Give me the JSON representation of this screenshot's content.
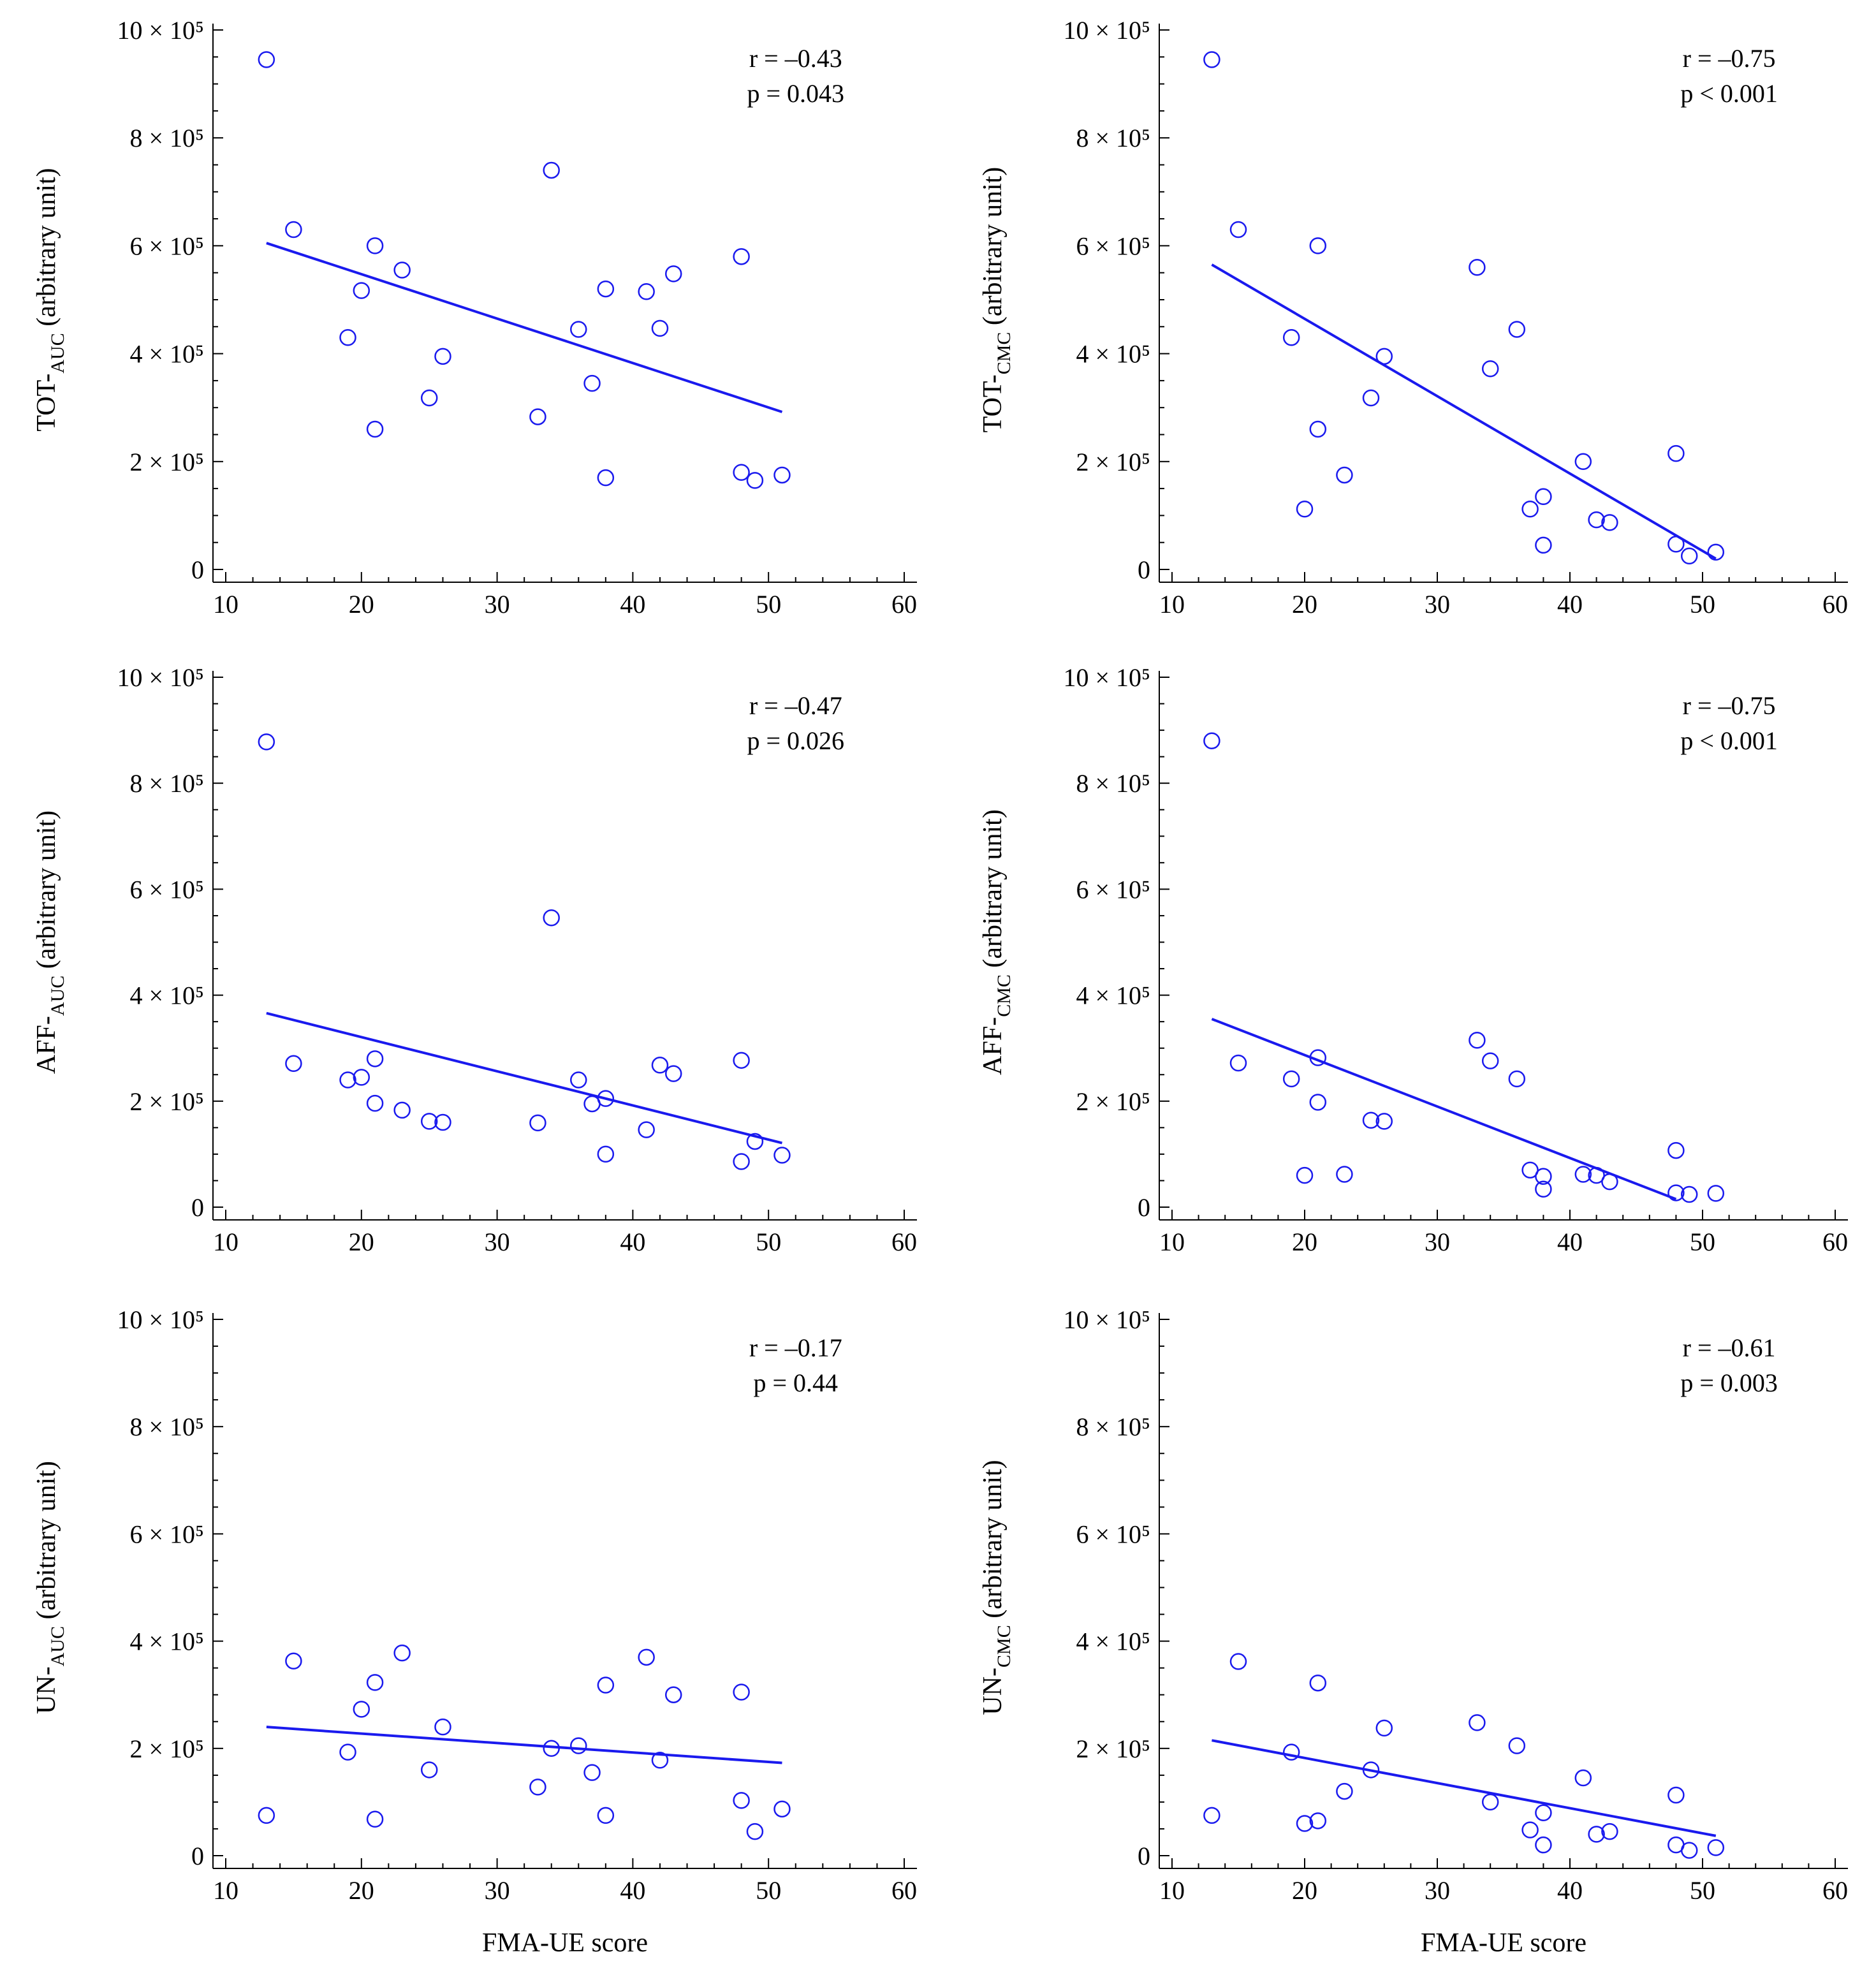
{
  "figure": {
    "x_axis_label": "FMA-UE score",
    "point_color": "#1a1aee",
    "line_color": "#1a1aee"
  },
  "chart_data": [
    {
      "type": "scatter",
      "id": "tot-auc",
      "ylabel_main": "TOT-",
      "ylabel_sub": "AUC",
      "ylabel_rest": " (arbitrary unit)",
      "xlabel": "",
      "xlim": [
        10,
        60
      ],
      "ylim": [
        0,
        1000000
      ],
      "xticks": [
        "10",
        "20",
        "30",
        "40",
        "50",
        "60"
      ],
      "yticks": [
        {
          "label": "0",
          "value": 0
        },
        {
          "label": "2 × 10⁵",
          "value": 200000
        },
        {
          "label": "4 × 10⁵",
          "value": 400000
        },
        {
          "label": "6 × 10⁵",
          "value": 600000
        },
        {
          "label": "8 × 10⁵",
          "value": 800000
        },
        {
          "label": "10 × 10⁵",
          "value": 1000000
        }
      ],
      "stats_r": "r =  –0.43",
      "stats_p": "p = 0.043",
      "fit": {
        "x": [
          13,
          51
        ],
        "y": [
          605000,
          292000
        ]
      },
      "points": [
        [
          13,
          945000
        ],
        [
          15,
          630000
        ],
        [
          19,
          430000
        ],
        [
          20,
          517000
        ],
        [
          21,
          600000
        ],
        [
          21,
          260000
        ],
        [
          23,
          555000
        ],
        [
          25,
          318000
        ],
        [
          26,
          395000
        ],
        [
          33,
          283000
        ],
        [
          34,
          740000
        ],
        [
          36,
          445000
        ],
        [
          37,
          345000
        ],
        [
          38,
          520000
        ],
        [
          38,
          170000
        ],
        [
          41,
          515000
        ],
        [
          42,
          447000
        ],
        [
          43,
          548000
        ],
        [
          48,
          580000
        ],
        [
          48,
          180000
        ],
        [
          49,
          165000
        ],
        [
          51,
          175000
        ]
      ]
    },
    {
      "type": "scatter",
      "id": "tot-cmc",
      "ylabel_main": "TOT-",
      "ylabel_sub": "CMC",
      "ylabel_rest": " (arbitrary unit)",
      "xlabel": "",
      "xlim": [
        10,
        60
      ],
      "ylim": [
        0,
        1000000
      ],
      "xticks": [
        "10",
        "20",
        "30",
        "40",
        "50",
        "60"
      ],
      "yticks": [
        {
          "label": "0",
          "value": 0
        },
        {
          "label": "2 × 10⁵",
          "value": 200000
        },
        {
          "label": "4 × 10⁵",
          "value": 400000
        },
        {
          "label": "6 × 10⁵",
          "value": 600000
        },
        {
          "label": "8 × 10⁵",
          "value": 800000
        },
        {
          "label": "10 × 10⁵",
          "value": 1000000
        }
      ],
      "stats_r": "r =  –0.75",
      "stats_p": "p < 0.001",
      "fit": {
        "x": [
          13,
          51
        ],
        "y": [
          565000,
          20000
        ]
      },
      "points": [
        [
          13,
          945000
        ],
        [
          15,
          630000
        ],
        [
          19,
          430000
        ],
        [
          20,
          112000
        ],
        [
          21,
          600000
        ],
        [
          21,
          260000
        ],
        [
          23,
          175000
        ],
        [
          25,
          318000
        ],
        [
          26,
          395000
        ],
        [
          33,
          560000
        ],
        [
          34,
          372000
        ],
        [
          36,
          445000
        ],
        [
          37,
          112000
        ],
        [
          38,
          135000
        ],
        [
          38,
          45000
        ],
        [
          41,
          200000
        ],
        [
          42,
          92000
        ],
        [
          43,
          87000
        ],
        [
          48,
          215000
        ],
        [
          48,
          47000
        ],
        [
          49,
          25000
        ],
        [
          51,
          32000
        ]
      ]
    },
    {
      "type": "scatter",
      "id": "aff-auc",
      "ylabel_main": "AFF-",
      "ylabel_sub": "AUC",
      "ylabel_rest": " (arbitrary unit)",
      "xlabel": "",
      "xlim": [
        10,
        60
      ],
      "ylim": [
        0,
        1000000
      ],
      "xticks": [
        "10",
        "20",
        "30",
        "40",
        "50",
        "60"
      ],
      "yticks": [
        {
          "label": "0",
          "value": 0
        },
        {
          "label": "2 × 10⁵",
          "value": 200000
        },
        {
          "label": "4 × 10⁵",
          "value": 400000
        },
        {
          "label": "6 × 10⁵",
          "value": 600000
        },
        {
          "label": "8 × 10⁵",
          "value": 800000
        },
        {
          "label": "10 × 10⁵",
          "value": 1000000
        }
      ],
      "stats_r": "r =  –0.47",
      "stats_p": "p = 0.026",
      "fit": {
        "x": [
          13,
          51
        ],
        "y": [
          366000,
          121000
        ]
      },
      "points": [
        [
          13,
          878000
        ],
        [
          15,
          271000
        ],
        [
          19,
          240000
        ],
        [
          20,
          245000
        ],
        [
          21,
          280000
        ],
        [
          21,
          196000
        ],
        [
          23,
          183000
        ],
        [
          25,
          162000
        ],
        [
          26,
          160000
        ],
        [
          33,
          159000
        ],
        [
          34,
          546000
        ],
        [
          36,
          240000
        ],
        [
          37,
          195000
        ],
        [
          38,
          205000
        ],
        [
          38,
          100000
        ],
        [
          41,
          146000
        ],
        [
          42,
          268000
        ],
        [
          43,
          252000
        ],
        [
          48,
          277000
        ],
        [
          48,
          86000
        ],
        [
          49,
          124000
        ],
        [
          51,
          98000
        ]
      ]
    },
    {
      "type": "scatter",
      "id": "aff-cmc",
      "ylabel_main": "AFF-",
      "ylabel_sub": "CMC",
      "ylabel_rest": " (arbitrary unit)",
      "xlabel": "",
      "xlim": [
        10,
        60
      ],
      "ylim": [
        0,
        1000000
      ],
      "xticks": [
        "10",
        "20",
        "30",
        "40",
        "50",
        "60"
      ],
      "yticks": [
        {
          "label": "0",
          "value": 0
        },
        {
          "label": "2 × 10⁵",
          "value": 200000
        },
        {
          "label": "4 × 10⁵",
          "value": 400000
        },
        {
          "label": "6 × 10⁵",
          "value": 600000
        },
        {
          "label": "8 × 10⁵",
          "value": 800000
        },
        {
          "label": "10 × 10⁵",
          "value": 1000000
        }
      ],
      "stats_r": "r =  –0.75",
      "stats_p": "p < 0.001",
      "fit": {
        "x": [
          13,
          48
        ],
        "y": [
          355000,
          15000
        ]
      },
      "points": [
        [
          13,
          880000
        ],
        [
          15,
          272000
        ],
        [
          19,
          242000
        ],
        [
          20,
          60000
        ],
        [
          21,
          282000
        ],
        [
          21,
          198000
        ],
        [
          23,
          62000
        ],
        [
          25,
          164000
        ],
        [
          26,
          162000
        ],
        [
          33,
          315000
        ],
        [
          34,
          276000
        ],
        [
          36,
          242000
        ],
        [
          37,
          70000
        ],
        [
          38,
          58000
        ],
        [
          38,
          34000
        ],
        [
          41,
          62000
        ],
        [
          42,
          60000
        ],
        [
          43,
          48000
        ],
        [
          48,
          107000
        ],
        [
          48,
          27000
        ],
        [
          49,
          24000
        ],
        [
          51,
          26000
        ]
      ]
    },
    {
      "type": "scatter",
      "id": "un-auc",
      "ylabel_main": "UN-",
      "ylabel_sub": "AUC",
      "ylabel_rest": " (arbitrary unit)",
      "xlabel": "FMA-UE score",
      "xlim": [
        10,
        60
      ],
      "ylim": [
        0,
        1000000
      ],
      "xticks": [
        "10",
        "20",
        "30",
        "40",
        "50",
        "60"
      ],
      "yticks": [
        {
          "label": "0",
          "value": 0
        },
        {
          "label": "2 × 10⁵",
          "value": 200000
        },
        {
          "label": "4 × 10⁵",
          "value": 400000
        },
        {
          "label": "6 × 10⁵",
          "value": 600000
        },
        {
          "label": "8 × 10⁵",
          "value": 800000
        },
        {
          "label": "10 × 10⁵",
          "value": 1000000
        }
      ],
      "stats_r": "r =  –0.17",
      "stats_p": "p = 0.44",
      "fit": {
        "x": [
          13,
          51
        ],
        "y": [
          240000,
          173000
        ]
      },
      "points": [
        [
          13,
          75000
        ],
        [
          15,
          363000
        ],
        [
          19,
          193000
        ],
        [
          20,
          273000
        ],
        [
          21,
          323000
        ],
        [
          21,
          68000
        ],
        [
          23,
          378000
        ],
        [
          25,
          160000
        ],
        [
          26,
          240000
        ],
        [
          33,
          128000
        ],
        [
          34,
          200000
        ],
        [
          36,
          205000
        ],
        [
          37,
          155000
        ],
        [
          38,
          318000
        ],
        [
          38,
          75000
        ],
        [
          41,
          370000
        ],
        [
          42,
          178000
        ],
        [
          43,
          300000
        ],
        [
          48,
          305000
        ],
        [
          48,
          103000
        ],
        [
          49,
          45000
        ],
        [
          51,
          87000
        ]
      ]
    },
    {
      "type": "scatter",
      "id": "un-cmc",
      "ylabel_main": "UN-",
      "ylabel_sub": "CMC",
      "ylabel_rest": " (arbitrary unit)",
      "xlabel": "FMA-UE score",
      "xlim": [
        10,
        60
      ],
      "ylim": [
        0,
        1000000
      ],
      "xticks": [
        "10",
        "20",
        "30",
        "40",
        "50",
        "60"
      ],
      "yticks": [
        {
          "label": "0",
          "value": 0
        },
        {
          "label": "2 × 10⁵",
          "value": 200000
        },
        {
          "label": "4 × 10⁵",
          "value": 400000
        },
        {
          "label": "6 × 10⁵",
          "value": 600000
        },
        {
          "label": "8 × 10⁵",
          "value": 800000
        },
        {
          "label": "10 × 10⁵",
          "value": 1000000
        }
      ],
      "stats_r": "r =  –0.61",
      "stats_p": "p = 0.003",
      "fit": {
        "x": [
          13,
          51
        ],
        "y": [
          215000,
          37000
        ]
      },
      "points": [
        [
          13,
          75000
        ],
        [
          15,
          362000
        ],
        [
          19,
          193000
        ],
        [
          20,
          60000
        ],
        [
          21,
          322000
        ],
        [
          21,
          65000
        ],
        [
          23,
          120000
        ],
        [
          25,
          160000
        ],
        [
          26,
          238000
        ],
        [
          33,
          248000
        ],
        [
          34,
          100000
        ],
        [
          36,
          205000
        ],
        [
          37,
          48000
        ],
        [
          38,
          80000
        ],
        [
          38,
          20000
        ],
        [
          41,
          145000
        ],
        [
          42,
          40000
        ],
        [
          43,
          45000
        ],
        [
          48,
          113000
        ],
        [
          48,
          20000
        ],
        [
          49,
          10000
        ],
        [
          51,
          15000
        ]
      ]
    }
  ]
}
